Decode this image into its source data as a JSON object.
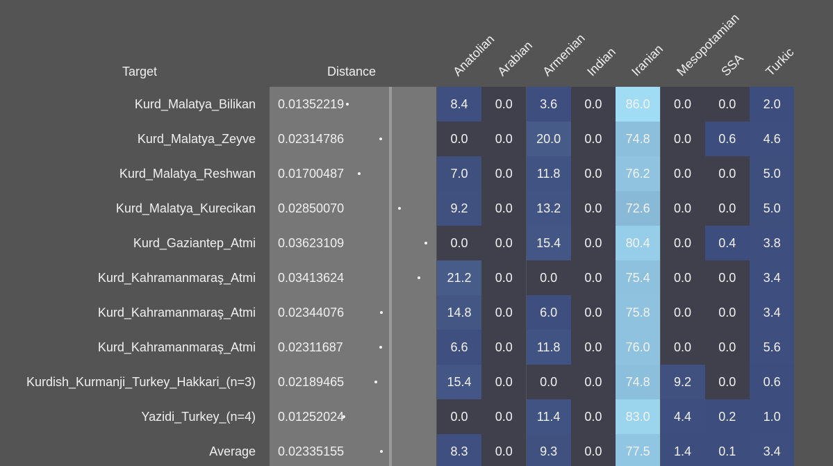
{
  "headers": {
    "target": "Target",
    "distance": "Distance"
  },
  "columns": [
    "Anatolian",
    "Arabian",
    "Armenian",
    "Indian",
    "Iranian",
    "Mesopotamian",
    "SSA",
    "Turkic"
  ],
  "rows": [
    {
      "target": "Kurd_Malatya_Bilikan",
      "distance": "0.01352219",
      "values": [
        "8.4",
        "0.0",
        "3.6",
        "0.0",
        "86.0",
        "0.0",
        "0.0",
        "2.0"
      ]
    },
    {
      "target": "Kurd_Malatya_Zeyve",
      "distance": "0.02314786",
      "values": [
        "0.0",
        "0.0",
        "20.0",
        "0.0",
        "74.8",
        "0.0",
        "0.6",
        "4.6"
      ]
    },
    {
      "target": "Kurd_Malatya_Reshwan",
      "distance": "0.01700487",
      "values": [
        "7.0",
        "0.0",
        "11.8",
        "0.0",
        "76.2",
        "0.0",
        "0.0",
        "5.0"
      ]
    },
    {
      "target": "Kurd_Malatya_Kurecikan",
      "distance": "0.02850070",
      "values": [
        "9.2",
        "0.0",
        "13.2",
        "0.0",
        "72.6",
        "0.0",
        "0.0",
        "5.0"
      ]
    },
    {
      "target": "Kurd_Gaziantep_Atmi",
      "distance": "0.03623109",
      "values": [
        "0.0",
        "0.0",
        "15.4",
        "0.0",
        "80.4",
        "0.0",
        "0.4",
        "3.8"
      ]
    },
    {
      "target": "Kurd_Kahramanmaraş_Atmi",
      "distance": "0.03413624",
      "values": [
        "21.2",
        "0.0",
        "0.0",
        "0.0",
        "75.4",
        "0.0",
        "0.0",
        "3.4"
      ]
    },
    {
      "target": "Kurd_Kahramanmaraş_Atmi",
      "distance": "0.02344076",
      "values": [
        "14.8",
        "0.0",
        "6.0",
        "0.0",
        "75.8",
        "0.0",
        "0.0",
        "3.4"
      ]
    },
    {
      "target": "Kurd_Kahramanmaraş_Atmi",
      "distance": "0.02311687",
      "values": [
        "6.6",
        "0.0",
        "11.8",
        "0.0",
        "76.0",
        "0.0",
        "0.0",
        "5.6"
      ]
    },
    {
      "target": "Kurdish_Kurmanji_Turkey_Hakkari_(n=3)",
      "distance": "0.02189465",
      "values": [
        "15.4",
        "0.0",
        "0.0",
        "0.0",
        "74.8",
        "9.2",
        "0.0",
        "0.6"
      ]
    },
    {
      "target": "Yazidi_Turkey_(n=4)",
      "distance": "0.01252024",
      "values": [
        "0.0",
        "0.0",
        "11.4",
        "0.0",
        "83.0",
        "4.4",
        "0.2",
        "1.0"
      ]
    },
    {
      "target": "Average",
      "distance": "0.02335155",
      "values": [
        "8.3",
        "0.0",
        "9.3",
        "0.0",
        "77.5",
        "1.4",
        "0.1",
        "3.4"
      ]
    }
  ],
  "colors": {
    "background": "#545454",
    "distance_panel": "#777777",
    "heat_zero": "#40404d",
    "heat_low": "#3d4d7d",
    "heat_high": "#a0dcf4"
  }
}
